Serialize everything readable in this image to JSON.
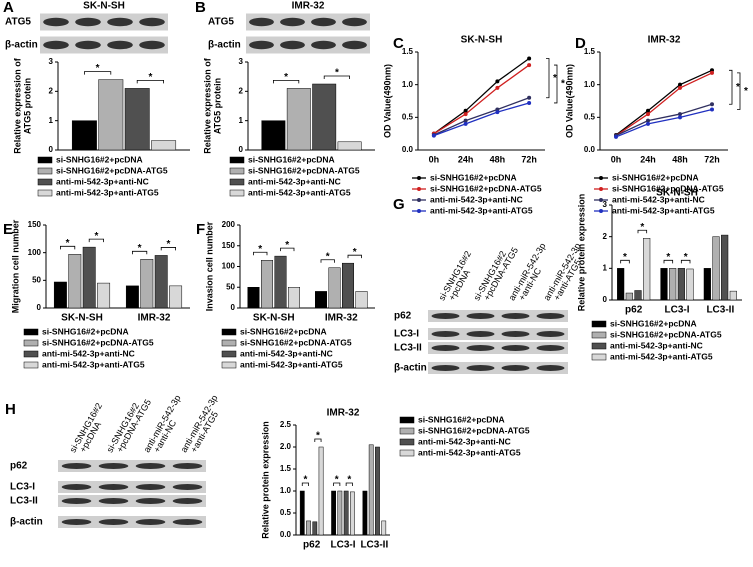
{
  "chart_data": [
    {
      "type": "bar",
      "label": "A",
      "ylabel": [
        "Relative expression of",
        "ATG5 protein"
      ],
      "ylim": [
        0,
        3
      ],
      "yticks": [
        0,
        1,
        2,
        3
      ],
      "series": [
        {
          "name": "si-SNHG16#2+pcDNA",
          "color": "#000000",
          "values": [
            1.0
          ]
        },
        {
          "name": "si-SNHG16#2+pcDNA-ATG5",
          "color": "#b0b0b0",
          "values": [
            2.4
          ]
        },
        {
          "name": "anti-mi-542-3p+anti-NC",
          "color": "#505050",
          "values": [
            2.1
          ]
        },
        {
          "name": "anti-mi-542-3p+anti-ATG5",
          "color": "#d8d8d8",
          "values": [
            0.32
          ]
        }
      ],
      "annotations": [
        "*",
        "*"
      ]
    },
    {
      "type": "bar",
      "label": "B",
      "ylabel": [
        "Relative expression of",
        "ATG5 protein"
      ],
      "ylim": [
        0,
        3
      ],
      "yticks": [
        0,
        1,
        2,
        3
      ],
      "series": [
        {
          "name": "si-SNHG16#2+pcDNA",
          "color": "#000000",
          "values": [
            1.0
          ]
        },
        {
          "name": "si-SNHG16#2+pcDNA-ATG5",
          "color": "#b0b0b0",
          "values": [
            2.1
          ]
        },
        {
          "name": "anti-mi-542-3p+anti-NC",
          "color": "#505050",
          "values": [
            2.25
          ]
        },
        {
          "name": "anti-mi-542-3p+anti-ATG5",
          "color": "#d8d8d8",
          "values": [
            0.28
          ]
        }
      ],
      "annotations": [
        "*",
        "*"
      ]
    },
    {
      "type": "line",
      "label": "C",
      "title": "SK-N-SH",
      "ylabel": [
        "OD Value(490nm)"
      ],
      "categories": [
        "0h",
        "24h",
        "48h",
        "72h"
      ],
      "ylim": [
        0,
        1.5
      ],
      "yticks": [
        {
          "value": 0,
          "label": "0.0"
        },
        {
          "value": 0.5,
          "label": "0.5"
        },
        {
          "value": 1,
          "label": "1.0"
        },
        {
          "value": 1.5,
          "label": "1.5"
        }
      ],
      "series": [
        {
          "name": "si-SNHG16#2+pcDNA",
          "color": "#000000",
          "values": [
            0.25,
            0.6,
            1.05,
            1.4
          ]
        },
        {
          "name": "si-SNHG16#2+pcDNA-ATG5",
          "color": "#d02020",
          "values": [
            0.25,
            0.55,
            0.95,
            1.3
          ]
        },
        {
          "name": "anti-mi-542-3p+anti-NC",
          "color": "#303060",
          "values": [
            0.23,
            0.45,
            0.62,
            0.8
          ]
        },
        {
          "name": "anti-mi-542-3p+anti-ATG5",
          "color": "#2030c0",
          "values": [
            0.22,
            0.4,
            0.58,
            0.72
          ]
        }
      ],
      "annotations": [
        "*",
        "*"
      ]
    },
    {
      "type": "line",
      "label": "D",
      "title": "IMR-32",
      "ylabel": [
        "OD Value(490nm)"
      ],
      "categories": [
        "0h",
        "24h",
        "48h",
        "72h"
      ],
      "ylim": [
        0,
        1.5
      ],
      "yticks": [
        {
          "value": 0,
          "label": "0.0"
        },
        {
          "value": 0.5,
          "label": "0.5"
        },
        {
          "value": 1,
          "label": "1.0"
        },
        {
          "value": 1.5,
          "label": "1.5"
        }
      ],
      "series": [
        {
          "name": "si-SNHG16#2+pcDNA",
          "color": "#000000",
          "values": [
            0.23,
            0.6,
            1.0,
            1.22
          ]
        },
        {
          "name": "si-SNHG16#2+pcDNA-ATG5",
          "color": "#d02020",
          "values": [
            0.22,
            0.55,
            0.95,
            1.18
          ]
        },
        {
          "name": "anti-mi-542-3p+anti-NC",
          "color": "#303060",
          "values": [
            0.22,
            0.45,
            0.55,
            0.7
          ]
        },
        {
          "name": "anti-mi-542-3p+anti-ATG5",
          "color": "#2030c0",
          "values": [
            0.2,
            0.4,
            0.5,
            0.62
          ]
        }
      ],
      "annotations": [
        "*",
        "*"
      ]
    },
    {
      "type": "bar",
      "label": "E",
      "ylabel": [
        "Migration cell number"
      ],
      "categories": [
        "SK-N-SH",
        "IMR-32"
      ],
      "ylim": [
        0,
        150
      ],
      "yticks": [
        0,
        50,
        100,
        150
      ],
      "series": [
        {
          "name": "si-SNHG16#2+pcDNA",
          "color": "#000000",
          "values": [
            47,
            40
          ]
        },
        {
          "name": "si-SNHG16#2+pcDNA-ATG5",
          "color": "#b0b0b0",
          "values": [
            97,
            88
          ]
        },
        {
          "name": "anti-mi-542-3p+anti-NC",
          "color": "#505050",
          "values": [
            110,
            95
          ]
        },
        {
          "name": "anti-mi-542-3p+anti-ATG5",
          "color": "#d8d8d8",
          "values": [
            45,
            40
          ]
        }
      ],
      "annotations": [
        "*",
        "*",
        "*",
        "*"
      ]
    },
    {
      "type": "bar",
      "label": "F",
      "ylabel": [
        "Invasion cell number"
      ],
      "categories": [
        "SK-N-SH",
        "IMR-32"
      ],
      "ylim": [
        0,
        200
      ],
      "yticks": [
        0,
        50,
        100,
        150,
        200
      ],
      "series": [
        {
          "name": "si-SNHG16#2+pcDNA",
          "color": "#000000",
          "values": [
            50,
            40
          ]
        },
        {
          "name": "si-SNHG16#2+pcDNA-ATG5",
          "color": "#b0b0b0",
          "values": [
            115,
            97
          ]
        },
        {
          "name": "anti-mi-542-3p+anti-NC",
          "color": "#505050",
          "values": [
            125,
            108
          ]
        },
        {
          "name": "anti-mi-542-3p+anti-ATG5",
          "color": "#d8d8d8",
          "values": [
            50,
            40
          ]
        }
      ],
      "annotations": [
        "*",
        "*",
        "*",
        "*"
      ]
    },
    {
      "type": "bar",
      "label": "G",
      "title": "SK-N-SH",
      "ylabel": [
        "Relative  protein expression"
      ],
      "categories": [
        "p62",
        "LC3-I",
        "LC3-II"
      ],
      "ylim": [
        0,
        3
      ],
      "yticks": [
        0,
        1,
        2,
        3
      ],
      "series": [
        {
          "name": "si-SNHG16#2+pcDNA",
          "color": "#000000",
          "values": [
            1.0,
            1.0,
            1.0
          ]
        },
        {
          "name": "si-SNHG16#2+pcDNA-ATG5",
          "color": "#b0b0b0",
          "values": [
            0.22,
            1.0,
            2.0
          ]
        },
        {
          "name": "anti-mi-542-3p+anti-NC",
          "color": "#505050",
          "values": [
            0.3,
            1.0,
            2.05
          ]
        },
        {
          "name": "anti-mi-542-3p+anti-ATG5",
          "color": "#d8d8d8",
          "values": [
            1.95,
            0.98,
            0.28
          ]
        }
      ],
      "annotations": [
        "*",
        "*",
        "*",
        "*"
      ]
    },
    {
      "type": "bar",
      "label": "H",
      "title": "IMR-32",
      "ylabel": [
        "Relative  protein expression"
      ],
      "categories": [
        "p62",
        "LC3-I",
        "LC3-II"
      ],
      "ylim": [
        0,
        2.5
      ],
      "yticks": [
        {
          "value": 0,
          "label": "0.0"
        },
        {
          "value": 0.5,
          "label": "0.5"
        },
        {
          "value": 1,
          "label": "1.0"
        },
        {
          "value": 1.5,
          "label": "1.5"
        },
        {
          "value": 2,
          "label": "2.0"
        },
        {
          "value": 2.5,
          "label": "2.5"
        }
      ],
      "series": [
        {
          "name": "si-SNHG16#2+pcDNA",
          "color": "#000000",
          "values": [
            1.0,
            1.0,
            1.0
          ]
        },
        {
          "name": "si-SNHG16#2+pcDNA-ATG5",
          "color": "#b0b0b0",
          "values": [
            0.32,
            1.0,
            2.05
          ]
        },
        {
          "name": "anti-mi-542-3p+anti-NC",
          "color": "#505050",
          "values": [
            0.3,
            1.0,
            2.0
          ]
        },
        {
          "name": "anti-mi-542-3p+anti-ATG5",
          "color": "#d8d8d8",
          "values": [
            2.0,
            0.98,
            0.32
          ]
        }
      ],
      "annotations": [
        "*",
        "*",
        "*",
        "*"
      ]
    }
  ],
  "blots": [
    {
      "header": "SK-N-SH",
      "rows": [
        "ATG5",
        "β-actin"
      ]
    },
    {
      "header": "IMR-32",
      "rows": [
        "ATG5",
        "β-actin"
      ]
    },
    {
      "columns": [
        [
          "si-SNHG16#2",
          "+pcDNA"
        ],
        [
          "si-SNHG16#2",
          "+pcDNA-ATG5"
        ],
        [
          "anti-miR-542-3p",
          "+anti-NC"
        ],
        [
          "anti-miR-542-3p",
          "+anti-ATG5"
        ]
      ],
      "rows": [
        "p62",
        "LC3-I",
        "LC3-II",
        "β-actin"
      ]
    },
    {
      "columns": [
        [
          "si-SNHG16#2",
          "+pcDNA"
        ],
        [
          "si-SNHG16#2",
          "+pcDNA-ATG5"
        ],
        [
          "anti-miR-542-3p",
          "+anti-NC"
        ],
        [
          "anti-miR-542-3p",
          "+anti-ATG5"
        ]
      ],
      "rows": [
        "p62",
        "LC3-I",
        "LC3-II",
        "β-actin"
      ]
    }
  ]
}
